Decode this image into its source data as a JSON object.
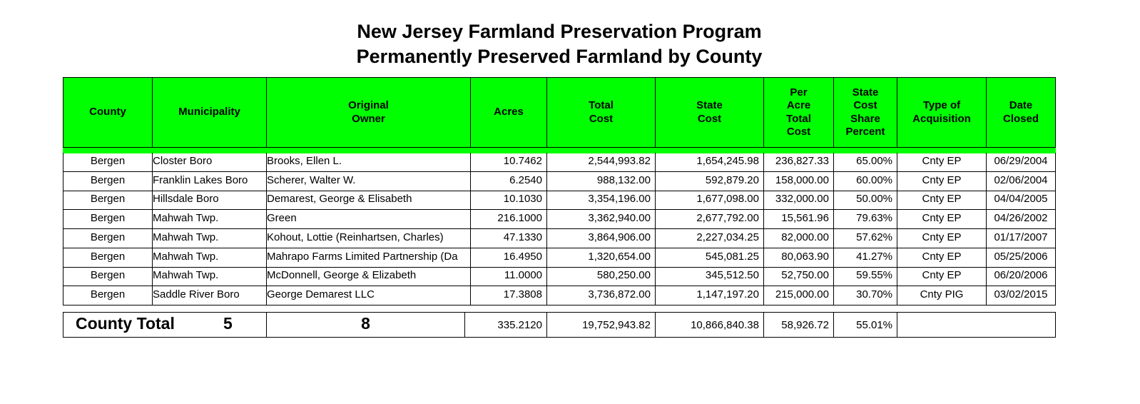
{
  "title_line1": "New Jersey Farmland Preservation Program",
  "title_line2": "Permanently Preserved Farmland by County",
  "headers": [
    "County",
    "Municipality",
    "Original\nOwner",
    "Acres",
    "Total\nCost",
    "State\nCost",
    "Per\nAcre\nTotal\nCost",
    "State\nCost\nShare\nPercent",
    "Type of\nAcquisition",
    "Date\nClosed"
  ],
  "rows": [
    [
      "Bergen",
      "Closter Boro",
      "Brooks, Ellen L.",
      "10.7462",
      "2,544,993.82",
      "1,654,245.98",
      "236,827.33",
      "65.00%",
      "Cnty EP",
      "06/29/2004"
    ],
    [
      "Bergen",
      "Franklin Lakes Boro",
      "Scherer, Walter W.",
      "6.2540",
      "988,132.00",
      "592,879.20",
      "158,000.00",
      "60.00%",
      "Cnty EP",
      "02/06/2004"
    ],
    [
      "Bergen",
      "Hillsdale Boro",
      "Demarest, George & Elisabeth",
      "10.1030",
      "3,354,196.00",
      "1,677,098.00",
      "332,000.00",
      "50.00%",
      "Cnty EP",
      "04/04/2005"
    ],
    [
      "Bergen",
      "Mahwah Twp.",
      "Green",
      "216.1000",
      "3,362,940.00",
      "2,677,792.00",
      "15,561.96",
      "79.63%",
      "Cnty EP",
      "04/26/2002"
    ],
    [
      "Bergen",
      "Mahwah Twp.",
      "Kohout, Lottie (Reinhartsen, Charles)",
      "47.1330",
      "3,864,906.00",
      "2,227,034.25",
      "82,000.00",
      "57.62%",
      "Cnty EP",
      "01/17/2007"
    ],
    [
      "Bergen",
      "Mahwah Twp.",
      "Mahrapo Farms Limited Partnership (Da",
      "16.4950",
      "1,320,654.00",
      "545,081.25",
      "80,063.90",
      "41.27%",
      "Cnty EP",
      "05/25/2006"
    ],
    [
      "Bergen",
      "Mahwah Twp.",
      "McDonnell, George & Elizabeth",
      "11.0000",
      "580,250.00",
      "345,512.50",
      "52,750.00",
      "59.55%",
      "Cnty EP",
      "06/20/2006"
    ],
    [
      "Bergen",
      "Saddle River Boro",
      "George Demarest LLC",
      "17.3808",
      "3,736,872.00",
      "1,147,197.20",
      "215,000.00",
      "30.70%",
      "Cnty PIG",
      "03/02/2015"
    ]
  ],
  "total": {
    "label": "County Total",
    "municipalities": "5",
    "farms": "8",
    "acres": "335.2120",
    "total_cost": "19,752,943.82",
    "state_cost": "10,866,840.38",
    "per_acre": "58,926.72",
    "share": "55.01%"
  }
}
